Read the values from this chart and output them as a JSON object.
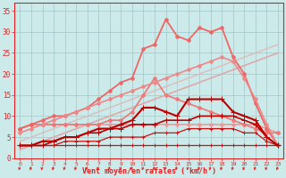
{
  "x": [
    0,
    1,
    2,
    3,
    4,
    5,
    6,
    7,
    8,
    9,
    10,
    11,
    12,
    13,
    14,
    15,
    16,
    17,
    18,
    19,
    20,
    21,
    22,
    23
  ],
  "background_color": "#cceaea",
  "grid_color": "#aacccc",
  "xlabel": "Vent moyen/en rafales ( km/h )",
  "xlabel_color": "#dd2222",
  "tick_color": "#dd2222",
  "ylim": [
    0,
    37
  ],
  "xlim": [
    -0.5,
    23.5
  ],
  "yticks": [
    0,
    5,
    10,
    15,
    20,
    25,
    30,
    35
  ],
  "lines": [
    {
      "y": [
        3,
        3,
        3,
        3,
        3,
        3,
        3,
        3,
        3,
        3,
        3,
        3,
        3,
        3,
        3,
        3,
        3,
        3,
        3,
        3,
        3,
        3,
        3,
        3
      ],
      "color": "#cc1111",
      "lw": 0.9,
      "marker": "+",
      "ms": 3.5,
      "zorder": 3
    },
    {
      "y": [
        3,
        3,
        3,
        3,
        4,
        4,
        4,
        4,
        5,
        5,
        5,
        5,
        6,
        6,
        6,
        7,
        7,
        7,
        7,
        7,
        6,
        6,
        4,
        3
      ],
      "color": "#cc1111",
      "lw": 0.9,
      "marker": "+",
      "ms": 3.5,
      "zorder": 3
    },
    {
      "y": [
        3,
        3,
        3,
        4,
        5,
        5,
        6,
        6,
        7,
        7,
        8,
        8,
        8,
        9,
        9,
        9,
        10,
        10,
        10,
        10,
        9,
        8,
        5,
        3
      ],
      "color": "#bb0000",
      "lw": 1.2,
      "marker": "+",
      "ms": 4,
      "zorder": 4
    },
    {
      "y": [
        3,
        3,
        4,
        4,
        5,
        5,
        6,
        7,
        7,
        8,
        9,
        12,
        12,
        11,
        10,
        14,
        14,
        14,
        14,
        11,
        10,
        9,
        5,
        3
      ],
      "color": "#bb0000",
      "lw": 1.5,
      "marker": "+",
      "ms": 4,
      "zorder": 4
    },
    {
      "y": [
        7,
        8,
        8,
        8,
        8,
        8,
        8,
        8,
        8,
        8,
        8,
        8,
        8,
        8,
        8,
        8,
        8,
        8,
        8,
        8,
        8,
        8,
        7,
        6
      ],
      "color": "#ee9999",
      "lw": 1.2,
      "marker": "o",
      "ms": 2.5,
      "zorder": 2
    },
    {
      "y": [
        2,
        3,
        4,
        5,
        6,
        7,
        8,
        9,
        10,
        11,
        12,
        13,
        14,
        15,
        16,
        17,
        18,
        19,
        20,
        21,
        22,
        23,
        24,
        25
      ],
      "color": "#ddaaaa",
      "lw": 1.2,
      "marker": null,
      "ms": 0,
      "zorder": 1
    },
    {
      "y": [
        4,
        5,
        6,
        7,
        8,
        9,
        10,
        11,
        12,
        13,
        14,
        15,
        16,
        17,
        18,
        19,
        20,
        21,
        22,
        23,
        24,
        25,
        26,
        27
      ],
      "color": "#ddbbbb",
      "lw": 1.0,
      "marker": null,
      "ms": 0,
      "zorder": 1
    },
    {
      "y": [
        7,
        8,
        8,
        8,
        8,
        8,
        8,
        8,
        9,
        9,
        11,
        15,
        19,
        15,
        14,
        13,
        12,
        11,
        10,
        9,
        8,
        7,
        6,
        6
      ],
      "color": "#ee7777",
      "lw": 1.2,
      "marker": "o",
      "ms": 2.5,
      "zorder": 2
    },
    {
      "y": [
        7,
        8,
        9,
        10,
        10,
        11,
        12,
        14,
        16,
        18,
        19,
        26,
        27,
        33,
        29,
        28,
        31,
        30,
        31,
        24,
        20,
        13,
        7,
        3
      ],
      "color": "#ee6666",
      "lw": 1.3,
      "marker": "o",
      "ms": 2.5,
      "zorder": 2
    },
    {
      "y": [
        6,
        7,
        8,
        9,
        10,
        11,
        12,
        13,
        14,
        15,
        16,
        17,
        18,
        19,
        20,
        21,
        22,
        23,
        24,
        23,
        19,
        14,
        8,
        3
      ],
      "color": "#ee8888",
      "lw": 1.2,
      "marker": "o",
      "ms": 2.5,
      "zorder": 2
    }
  ]
}
